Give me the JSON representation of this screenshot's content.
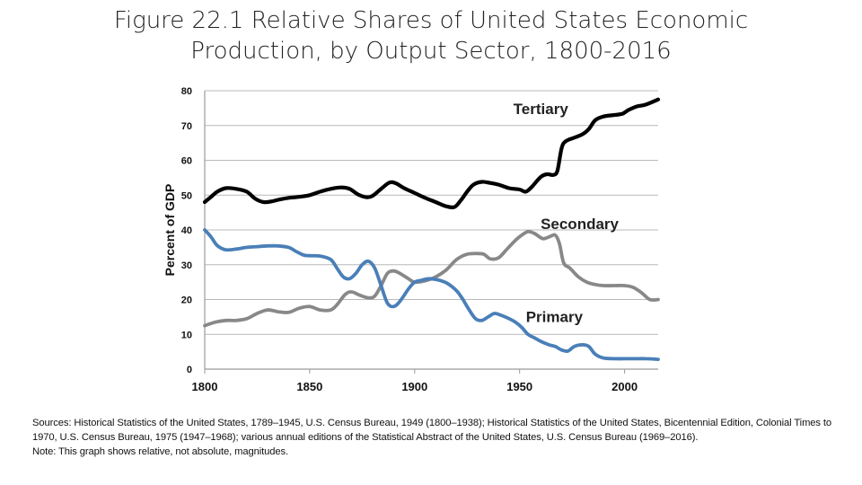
{
  "title": {
    "line1": "Figure 22.1 Relative Shares of United States Economic",
    "line2": "Production, by Output Sector, 1800-2016"
  },
  "sources": {
    "text": "Sources: Historical Statistics of the United States, 1789–1945, U.S. Census Bureau, 1949 (1800–1938); Historical Statistics of the United States, Bicentennial Edition, Colonial Times to 1970, U.S. Census Bureau, 1975 (1947–1968); various annual editions of the Statistical Abstract of the United States, U.S. Census Bureau (1969–2016).",
    "note": "Note: This graph shows relative, not absolute, magnitudes."
  },
  "chart_data": {
    "type": "line",
    "title": "",
    "xlabel": "",
    "ylabel": "Percent of GDP",
    "xlim": [
      1800,
      2016
    ],
    "ylim": [
      0,
      80
    ],
    "xticks": [
      1800,
      1850,
      1900,
      1950,
      2000
    ],
    "yticks": [
      0,
      10,
      20,
      30,
      40,
      50,
      60,
      70,
      80
    ],
    "grid": "horizontal",
    "legend": "none (series labeled directly on chart)",
    "series": [
      {
        "name": "Tertiary",
        "color": "#000000",
        "label_position": "upper-right",
        "points": [
          [
            1800,
            48
          ],
          [
            1803,
            49.5
          ],
          [
            1806,
            51
          ],
          [
            1810,
            52
          ],
          [
            1815,
            51.8
          ],
          [
            1820,
            51
          ],
          [
            1824,
            49
          ],
          [
            1828,
            48
          ],
          [
            1832,
            48.2
          ],
          [
            1836,
            48.8
          ],
          [
            1840,
            49.2
          ],
          [
            1845,
            49.5
          ],
          [
            1850,
            50
          ],
          [
            1855,
            51
          ],
          [
            1860,
            51.8
          ],
          [
            1865,
            52.2
          ],
          [
            1869,
            51.8
          ],
          [
            1873,
            50.2
          ],
          [
            1877,
            49.4
          ],
          [
            1880,
            49.8
          ],
          [
            1884,
            51.8
          ],
          [
            1888,
            53.6
          ],
          [
            1891,
            53.4
          ],
          [
            1895,
            52
          ],
          [
            1900,
            50.6
          ],
          [
            1905,
            49.2
          ],
          [
            1910,
            48
          ],
          [
            1915,
            46.8
          ],
          [
            1919,
            46.6
          ],
          [
            1922,
            48.5
          ],
          [
            1925,
            51
          ],
          [
            1928,
            53
          ],
          [
            1932,
            53.8
          ],
          [
            1936,
            53.5
          ],
          [
            1940,
            53
          ],
          [
            1945,
            52
          ],
          [
            1950,
            51.6
          ],
          [
            1953,
            51
          ],
          [
            1956,
            52.5
          ],
          [
            1960,
            55.2
          ],
          [
            1963,
            56
          ],
          [
            1966,
            55.8
          ],
          [
            1968,
            57
          ],
          [
            1970,
            63.5
          ],
          [
            1972,
            65.5
          ],
          [
            1976,
            66.5
          ],
          [
            1980,
            67.5
          ],
          [
            1983,
            69
          ],
          [
            1986,
            71.5
          ],
          [
            1990,
            72.6
          ],
          [
            1995,
            73
          ],
          [
            1999,
            73.4
          ],
          [
            2002,
            74.5
          ],
          [
            2006,
            75.5
          ],
          [
            2010,
            76
          ],
          [
            2016,
            77.5
          ]
        ]
      },
      {
        "name": "Secondary",
        "color": "#888888",
        "label_position": "middle-right",
        "points": [
          [
            1800,
            12.5
          ],
          [
            1805,
            13.5
          ],
          [
            1810,
            14
          ],
          [
            1815,
            14
          ],
          [
            1820,
            14.5
          ],
          [
            1825,
            16
          ],
          [
            1830,
            17
          ],
          [
            1835,
            16.5
          ],
          [
            1840,
            16.3
          ],
          [
            1845,
            17.5
          ],
          [
            1850,
            18
          ],
          [
            1855,
            17
          ],
          [
            1860,
            17
          ],
          [
            1863,
            18.5
          ],
          [
            1867,
            21.5
          ],
          [
            1870,
            22.2
          ],
          [
            1874,
            21.2
          ],
          [
            1878,
            20.5
          ],
          [
            1881,
            21
          ],
          [
            1884,
            24
          ],
          [
            1887,
            27.5
          ],
          [
            1890,
            28.2
          ],
          [
            1893,
            27.5
          ],
          [
            1897,
            26
          ],
          [
            1900,
            25
          ],
          [
            1905,
            25.4
          ],
          [
            1910,
            26.5
          ],
          [
            1915,
            28.5
          ],
          [
            1920,
            31.5
          ],
          [
            1925,
            33
          ],
          [
            1930,
            33.2
          ],
          [
            1933,
            33
          ],
          [
            1936,
            31.7
          ],
          [
            1940,
            32
          ],
          [
            1944,
            34.5
          ],
          [
            1948,
            37
          ],
          [
            1951,
            38.5
          ],
          [
            1954,
            39.5
          ],
          [
            1957,
            39
          ],
          [
            1961,
            37.5
          ],
          [
            1964,
            38
          ],
          [
            1967,
            38.5
          ],
          [
            1969,
            36
          ],
          [
            1971,
            30.5
          ],
          [
            1974,
            29
          ],
          [
            1978,
            26.5
          ],
          [
            1982,
            25
          ],
          [
            1986,
            24.3
          ],
          [
            1990,
            24
          ],
          [
            1995,
            24
          ],
          [
            2000,
            24
          ],
          [
            2004,
            23.5
          ],
          [
            2008,
            22
          ],
          [
            2012,
            20
          ],
          [
            2016,
            20
          ]
        ]
      },
      {
        "name": "Primary",
        "color": "#4a7fb8",
        "label_position": "lower-right",
        "points": [
          [
            1800,
            40
          ],
          [
            1803,
            38
          ],
          [
            1806,
            35.5
          ],
          [
            1810,
            34.3
          ],
          [
            1815,
            34.5
          ],
          [
            1820,
            35
          ],
          [
            1825,
            35.2
          ],
          [
            1830,
            35.4
          ],
          [
            1835,
            35.4
          ],
          [
            1840,
            35
          ],
          [
            1843,
            34
          ],
          [
            1847,
            32.8
          ],
          [
            1850,
            32.6
          ],
          [
            1855,
            32.5
          ],
          [
            1860,
            31.5
          ],
          [
            1863,
            29
          ],
          [
            1866,
            26.5
          ],
          [
            1869,
            26
          ],
          [
            1872,
            27.5
          ],
          [
            1875,
            30
          ],
          [
            1878,
            31
          ],
          [
            1881,
            29
          ],
          [
            1884,
            24
          ],
          [
            1887,
            19
          ],
          [
            1890,
            18
          ],
          [
            1893,
            19.5
          ],
          [
            1897,
            23
          ],
          [
            1900,
            25
          ],
          [
            1903,
            25.5
          ],
          [
            1907,
            26
          ],
          [
            1912,
            25.5
          ],
          [
            1916,
            24.5
          ],
          [
            1920,
            22.5
          ],
          [
            1923,
            20
          ],
          [
            1926,
            17
          ],
          [
            1929,
            14.5
          ],
          [
            1932,
            14
          ],
          [
            1935,
            15
          ],
          [
            1938,
            16
          ],
          [
            1941,
            15.5
          ],
          [
            1945,
            14.5
          ],
          [
            1948,
            13.5
          ],
          [
            1951,
            12
          ],
          [
            1954,
            10
          ],
          [
            1957,
            9
          ],
          [
            1960,
            8
          ],
          [
            1964,
            7
          ],
          [
            1967,
            6.5
          ],
          [
            1970,
            5.5
          ],
          [
            1973,
            5.2
          ],
          [
            1976,
            6.5
          ],
          [
            1980,
            7
          ],
          [
            1983,
            6.5
          ],
          [
            1986,
            4.3
          ],
          [
            1990,
            3.2
          ],
          [
            1995,
            3
          ],
          [
            2000,
            3
          ],
          [
            2005,
            3
          ],
          [
            2010,
            3
          ],
          [
            2016,
            2.8
          ]
        ]
      }
    ]
  }
}
